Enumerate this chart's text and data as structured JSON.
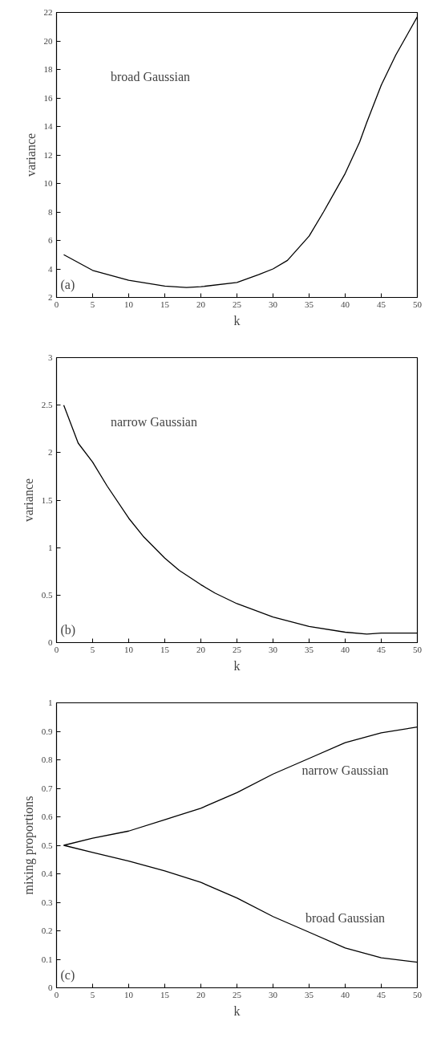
{
  "chart_data": [
    {
      "type": "line",
      "xlabel": "k",
      "ylabel": "variance",
      "annotations": [
        "(a)"
      ],
      "xlim": [
        0,
        50
      ],
      "ylim": [
        2,
        22
      ],
      "xticks": [
        0,
        5,
        10,
        15,
        20,
        25,
        30,
        35,
        40,
        45,
        50
      ],
      "yticks": [
        2,
        4,
        6,
        8,
        10,
        12,
        14,
        16,
        18,
        20,
        22
      ],
      "x": [
        1,
        5,
        10,
        15,
        18,
        20,
        25,
        28,
        30,
        32,
        35,
        37,
        40,
        42,
        43,
        45,
        47,
        50
      ],
      "series": [
        {
          "name": "broad Gaussian",
          "color": "#000000",
          "values": [
            5.0,
            3.9,
            3.2,
            2.8,
            2.7,
            2.75,
            3.05,
            3.6,
            4.0,
            4.6,
            6.3,
            8.0,
            10.7,
            12.9,
            14.3,
            16.9,
            19.0,
            21.7
          ]
        }
      ]
    },
    {
      "type": "line",
      "xlabel": "k",
      "ylabel": "variance",
      "annotations": [
        "(b)"
      ],
      "xlim": [
        0,
        50
      ],
      "ylim": [
        0,
        3
      ],
      "xticks": [
        0,
        5,
        10,
        15,
        20,
        25,
        30,
        35,
        40,
        45,
        50
      ],
      "yticks": [
        0,
        0.5,
        1,
        1.5,
        2,
        2.5,
        3
      ],
      "x": [
        1,
        3,
        5,
        7,
        10,
        12,
        15,
        17,
        20,
        22,
        25,
        30,
        35,
        40,
        43,
        45,
        50
      ],
      "series": [
        {
          "name": "narrow Gaussian",
          "color": "#000000",
          "values": [
            2.5,
            2.1,
            1.9,
            1.65,
            1.31,
            1.12,
            0.89,
            0.76,
            0.61,
            0.52,
            0.41,
            0.27,
            0.17,
            0.11,
            0.09,
            0.1,
            0.1
          ]
        }
      ]
    },
    {
      "type": "line",
      "xlabel": "k",
      "ylabel": "mixing proportions",
      "annotations": [
        "(c)"
      ],
      "xlim": [
        0,
        50
      ],
      "ylim": [
        0,
        1
      ],
      "xticks": [
        0,
        5,
        10,
        15,
        20,
        25,
        30,
        35,
        40,
        45,
        50
      ],
      "yticks": [
        0,
        0.1,
        0.2,
        0.3,
        0.4,
        0.5,
        0.6,
        0.7,
        0.8,
        0.9,
        1
      ],
      "x": [
        1,
        5,
        10,
        15,
        20,
        25,
        30,
        35,
        40,
        45,
        50
      ],
      "series": [
        {
          "name": "narrow Gaussian",
          "color": "#000000",
          "values": [
            0.5,
            0.525,
            0.55,
            0.59,
            0.63,
            0.685,
            0.75,
            0.805,
            0.86,
            0.895,
            0.915
          ]
        },
        {
          "name": "broad Gaussian",
          "color": "#000000",
          "values": [
            0.5,
            0.475,
            0.445,
            0.41,
            0.37,
            0.315,
            0.25,
            0.195,
            0.14,
            0.105,
            0.09
          ]
        }
      ]
    }
  ]
}
